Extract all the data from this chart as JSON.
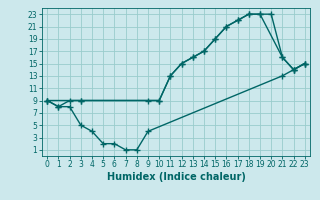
{
  "xlabel": "Humidex (Indice chaleur)",
  "line1_x": [
    0,
    1,
    2,
    3,
    10,
    11,
    12,
    13,
    14,
    15,
    16,
    17,
    18,
    19,
    21,
    22,
    23
  ],
  "line1_y": [
    9,
    8,
    9,
    9,
    9,
    13,
    15,
    16,
    17,
    19,
    21,
    22,
    23,
    23,
    16,
    14,
    15
  ],
  "line2_x": [
    0,
    3,
    9,
    10,
    11,
    12,
    13,
    14,
    15,
    16,
    17,
    18,
    19,
    20,
    21,
    22,
    23
  ],
  "line2_y": [
    9,
    9,
    9,
    9,
    13,
    15,
    16,
    17,
    19,
    21,
    22,
    23,
    23,
    23,
    16,
    14,
    15
  ],
  "line3_x": [
    0,
    1,
    2,
    3,
    4,
    5,
    6,
    7,
    8,
    9,
    21,
    22,
    23
  ],
  "line3_y": [
    9,
    8,
    8,
    5,
    4,
    2,
    2,
    1,
    1,
    4,
    13,
    14,
    15
  ],
  "xlim": [
    -0.5,
    23.5
  ],
  "ylim": [
    0,
    24
  ],
  "xticks": [
    0,
    1,
    2,
    3,
    4,
    5,
    6,
    7,
    8,
    9,
    10,
    11,
    12,
    13,
    14,
    15,
    16,
    17,
    18,
    19,
    20,
    21,
    22,
    23
  ],
  "yticks": [
    1,
    3,
    5,
    7,
    9,
    11,
    13,
    15,
    17,
    19,
    21,
    23
  ],
  "bg_color": "#cce8ec",
  "line_color": "#006666",
  "grid_color": "#99cccc",
  "tick_fontsize": 5.5,
  "xlabel_fontsize": 7
}
